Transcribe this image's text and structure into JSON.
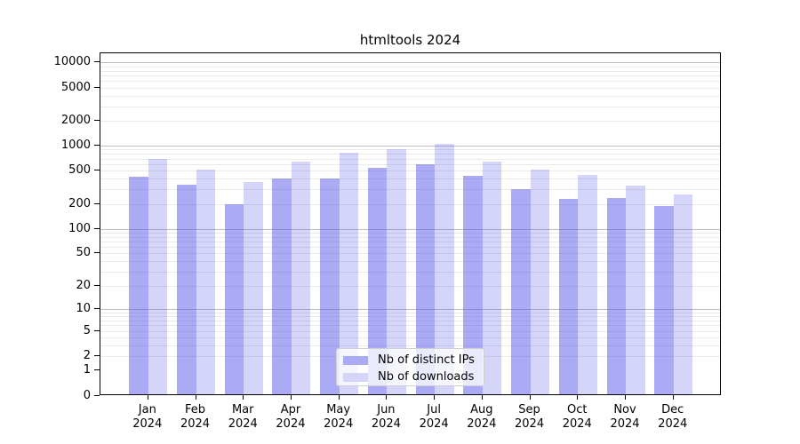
{
  "title": "htmltools 2024",
  "chart_data": {
    "type": "bar",
    "title": "htmltools 2024",
    "categories": [
      "Jan",
      "Feb",
      "Mar",
      "Apr",
      "May",
      "Jun",
      "Jul",
      "Aug",
      "Sep",
      "Oct",
      "Nov",
      "Dec"
    ],
    "x_year_label": "2024",
    "series": [
      {
        "name": "Nb of distinct IPs",
        "color": "#5757eb",
        "opacity": 0.5,
        "values": [
          425,
          345,
          200,
          410,
          410,
          545,
          600,
          445,
          305,
          235,
          240,
          190
        ]
      },
      {
        "name": "Nb of downloads",
        "color": "#5757eb",
        "opacity": 0.25,
        "values": [
          710,
          525,
          370,
          660,
          840,
          920,
          1070,
          660,
          525,
          455,
          335,
          265
        ]
      }
    ],
    "y_axis": {
      "scale": "log(value+1)",
      "ticks": [
        0,
        1,
        2,
        5,
        10,
        20,
        50,
        100,
        200,
        500,
        1000,
        2000,
        5000,
        10000
      ],
      "max": 13100
    },
    "grid": {
      "major_color": "#bdbdbd",
      "minor_color": "#e9e9e9",
      "minor_mantissas": [
        2,
        3,
        4,
        5,
        6,
        7,
        8,
        9
      ],
      "major_lines": [
        10,
        100,
        1000,
        10000
      ]
    },
    "legend": {
      "position": "inside-bottom-center",
      "entries": [
        "Nb of distinct IPs",
        "Nb of downloads"
      ]
    },
    "background": "#ffffff",
    "xlabel": "",
    "ylabel": ""
  }
}
